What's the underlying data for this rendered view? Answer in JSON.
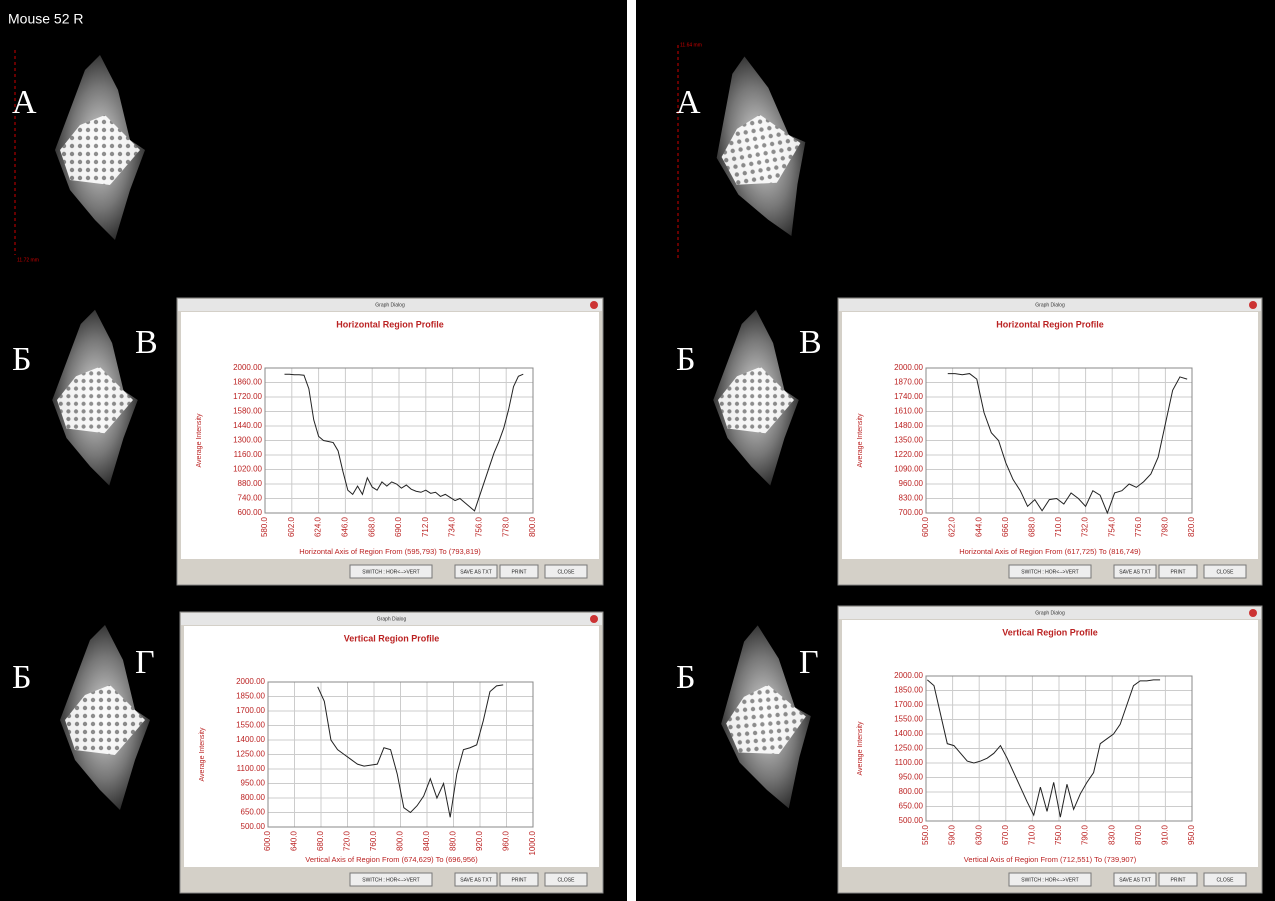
{
  "header": {
    "title": "Mouse 52 R"
  },
  "panels": [
    {
      "scale_label": "11.72 mm",
      "labels": [
        "А",
        "Б",
        "В",
        "Б",
        "Г"
      ]
    },
    {
      "scale_label": "11.64 mm",
      "labels": [
        "А",
        "Б",
        "В",
        "Б",
        "Г"
      ]
    }
  ],
  "dialog": {
    "title": "Graph Dialog",
    "buttons": [
      "SWITCH : HOR<-->VERT",
      "SAVE AS TXT",
      "PRINT",
      "CLOSE"
    ]
  },
  "chart_data": [
    {
      "type": "line",
      "title": "Horizontal Region Profile",
      "y_label": "Average Intensity",
      "x_label": "Horizontal Axis of Region From (595,793) To (793,819)",
      "color": "#222222",
      "grid": true,
      "x": [
        596,
        600,
        604,
        608,
        612,
        616,
        620,
        624,
        628,
        632,
        636,
        640,
        644,
        648,
        652,
        656,
        660,
        664,
        668,
        672,
        676,
        680,
        684,
        688,
        692,
        696,
        700,
        704,
        708,
        712,
        716,
        720,
        724,
        728,
        732,
        736,
        740,
        744,
        748,
        752,
        756,
        760,
        764,
        768,
        772,
        776,
        780,
        784,
        788,
        792
      ],
      "values": [
        1940,
        1940,
        1935,
        1935,
        1930,
        1800,
        1500,
        1340,
        1300,
        1290,
        1280,
        1200,
        1000,
        820,
        780,
        860,
        780,
        940,
        850,
        820,
        900,
        860,
        900,
        880,
        840,
        870,
        830,
        810,
        800,
        820,
        790,
        800,
        760,
        780,
        750,
        720,
        740,
        700,
        660,
        620,
        760,
        900,
        1040,
        1180,
        1290,
        1420,
        1600,
        1820,
        1920,
        1940
      ],
      "xlim": [
        580,
        800
      ],
      "ylim": [
        600,
        2000
      ],
      "xticks": [
        {
          "value": 580,
          "label": "580.0"
        },
        {
          "value": 602,
          "label": "602.0"
        },
        {
          "value": 624,
          "label": "624.0"
        },
        {
          "value": 646,
          "label": "646.0"
        },
        {
          "value": 668,
          "label": "668.0"
        },
        {
          "value": 690,
          "label": "690.0"
        },
        {
          "value": 712,
          "label": "712.0"
        },
        {
          "value": 734,
          "label": "734.0"
        },
        {
          "value": 756,
          "label": "756.0"
        },
        {
          "value": 778,
          "label": "778.0"
        },
        {
          "value": 800,
          "label": "800.0"
        }
      ],
      "yticks": [
        {
          "value": 600,
          "label": "600.00"
        },
        {
          "value": 740,
          "label": "740.00"
        },
        {
          "value": 880,
          "label": "880.00"
        },
        {
          "value": 1020,
          "label": "1020.00"
        },
        {
          "value": 1160,
          "label": "1160.00"
        },
        {
          "value": 1300,
          "label": "1300.00"
        },
        {
          "value": 1440,
          "label": "1440.00"
        },
        {
          "value": 1580,
          "label": "1580.00"
        },
        {
          "value": 1720,
          "label": "1720.00"
        },
        {
          "value": 1860,
          "label": "1860.00"
        },
        {
          "value": 2000,
          "label": "2000.00"
        }
      ]
    },
    {
      "type": "line",
      "title": "Vertical Region Profile",
      "y_label": "Average Intensity",
      "x_label": "Vertical Axis of Region From (674,629) To (696,956)",
      "color": "#222222",
      "grid": true,
      "x": [
        675,
        685,
        695,
        705,
        715,
        725,
        735,
        745,
        755,
        765,
        775,
        785,
        795,
        805,
        815,
        825,
        835,
        845,
        855,
        865,
        875,
        885,
        895,
        905,
        915,
        925,
        935,
        945,
        955
      ],
      "values": [
        1950,
        1800,
        1400,
        1300,
        1250,
        1200,
        1150,
        1130,
        1140,
        1150,
        1320,
        1300,
        1050,
        700,
        650,
        720,
        820,
        1000,
        800,
        950,
        600,
        1050,
        1300,
        1320,
        1350,
        1600,
        1900,
        1960,
        1970
      ],
      "xlim": [
        600,
        1000
      ],
      "ylim": [
        500,
        2000
      ],
      "xticks": [
        {
          "value": 600,
          "label": "600.0"
        },
        {
          "value": 640,
          "label": "640.0"
        },
        {
          "value": 680,
          "label": "680.0"
        },
        {
          "value": 720,
          "label": "720.0"
        },
        {
          "value": 760,
          "label": "760.0"
        },
        {
          "value": 800,
          "label": "800.0"
        },
        {
          "value": 840,
          "label": "840.0"
        },
        {
          "value": 880,
          "label": "880.0"
        },
        {
          "value": 920,
          "label": "920.0"
        },
        {
          "value": 960,
          "label": "960.0"
        },
        {
          "value": 1000,
          "label": "1000.0"
        }
      ],
      "yticks": [
        {
          "value": 500,
          "label": "500.00"
        },
        {
          "value": 650,
          "label": "650.00"
        },
        {
          "value": 800,
          "label": "800.00"
        },
        {
          "value": 950,
          "label": "950.00"
        },
        {
          "value": 1100,
          "label": "1100.00"
        },
        {
          "value": 1250,
          "label": "1250.00"
        },
        {
          "value": 1400,
          "label": "1400.00"
        },
        {
          "value": 1550,
          "label": "1550.00"
        },
        {
          "value": 1700,
          "label": "1700.00"
        },
        {
          "value": 1850,
          "label": "1850.00"
        },
        {
          "value": 2000,
          "label": "2000.00"
        }
      ]
    },
    {
      "type": "line",
      "title": "Horizontal Region Profile",
      "y_label": "Average Intensity",
      "x_label": "Horizontal Axis of Region From (617,725) To (816,749)",
      "color": "#222222",
      "grid": true,
      "x": [
        618,
        624,
        630,
        636,
        642,
        648,
        654,
        660,
        666,
        672,
        678,
        684,
        690,
        696,
        702,
        708,
        714,
        720,
        726,
        732,
        738,
        744,
        750,
        756,
        762,
        768,
        774,
        780,
        786,
        792,
        798,
        804,
        810,
        816
      ],
      "values": [
        1950,
        1950,
        1940,
        1950,
        1900,
        1600,
        1420,
        1350,
        1150,
        1000,
        900,
        760,
        820,
        720,
        820,
        830,
        780,
        880,
        830,
        760,
        900,
        860,
        700,
        880,
        900,
        960,
        930,
        980,
        1050,
        1200,
        1500,
        1800,
        1920,
        1900
      ],
      "xlim": [
        600,
        820
      ],
      "ylim": [
        700,
        2000
      ],
      "xticks": [
        {
          "value": 600,
          "label": "600.0"
        },
        {
          "value": 622,
          "label": "622.0"
        },
        {
          "value": 644,
          "label": "644.0"
        },
        {
          "value": 666,
          "label": "666.0"
        },
        {
          "value": 688,
          "label": "688.0"
        },
        {
          "value": 710,
          "label": "710.0"
        },
        {
          "value": 732,
          "label": "732.0"
        },
        {
          "value": 754,
          "label": "754.0"
        },
        {
          "value": 776,
          "label": "776.0"
        },
        {
          "value": 798,
          "label": "798.0"
        },
        {
          "value": 820,
          "label": "820.0"
        }
      ],
      "yticks": [
        {
          "value": 700,
          "label": "700.00"
        },
        {
          "value": 830,
          "label": "830.00"
        },
        {
          "value": 960,
          "label": "960.00"
        },
        {
          "value": 1090,
          "label": "1090.00"
        },
        {
          "value": 1220,
          "label": "1220.00"
        },
        {
          "value": 1350,
          "label": "1350.00"
        },
        {
          "value": 1480,
          "label": "1480.00"
        },
        {
          "value": 1610,
          "label": "1610.00"
        },
        {
          "value": 1740,
          "label": "1740.00"
        },
        {
          "value": 1870,
          "label": "1870.00"
        },
        {
          "value": 2000,
          "label": "2000.00"
        }
      ]
    },
    {
      "type": "line",
      "title": "Vertical Region Profile",
      "y_label": "Average Intensity",
      "x_label": "Vertical Axis of Region From (712,551) To (739,907)",
      "color": "#222222",
      "grid": true,
      "x": [
        552,
        562,
        572,
        582,
        592,
        602,
        612,
        622,
        632,
        642,
        652,
        662,
        672,
        682,
        692,
        702,
        712,
        722,
        732,
        742,
        752,
        762,
        772,
        782,
        792,
        802,
        812,
        822,
        832,
        842,
        852,
        862,
        872,
        882,
        892,
        902
      ],
      "values": [
        1960,
        1900,
        1600,
        1300,
        1280,
        1200,
        1120,
        1100,
        1120,
        1150,
        1200,
        1280,
        1150,
        1000,
        850,
        700,
        560,
        850,
        600,
        900,
        540,
        880,
        620,
        780,
        900,
        1000,
        1300,
        1350,
        1400,
        1500,
        1700,
        1900,
        1950,
        1950,
        1960,
        1960
      ],
      "xlim": [
        550,
        950
      ],
      "ylim": [
        500,
        2000
      ],
      "xticks": [
        {
          "value": 550,
          "label": "550.0"
        },
        {
          "value": 590,
          "label": "590.0"
        },
        {
          "value": 630,
          "label": "630.0"
        },
        {
          "value": 670,
          "label": "670.0"
        },
        {
          "value": 710,
          "label": "710.0"
        },
        {
          "value": 750,
          "label": "750.0"
        },
        {
          "value": 790,
          "label": "790.0"
        },
        {
          "value": 830,
          "label": "830.0"
        },
        {
          "value": 870,
          "label": "870.0"
        },
        {
          "value": 910,
          "label": "910.0"
        },
        {
          "value": 950,
          "label": "950.0"
        }
      ],
      "yticks": [
        {
          "value": 500,
          "label": "500.00"
        },
        {
          "value": 650,
          "label": "650.00"
        },
        {
          "value": 800,
          "label": "800.00"
        },
        {
          "value": 950,
          "label": "950.00"
        },
        {
          "value": 1100,
          "label": "1100.00"
        },
        {
          "value": 1250,
          "label": "1250.00"
        },
        {
          "value": 1400,
          "label": "1400.00"
        },
        {
          "value": 1550,
          "label": "1550.00"
        },
        {
          "value": 1700,
          "label": "1700.00"
        },
        {
          "value": 1850,
          "label": "1850.00"
        },
        {
          "value": 2000,
          "label": "2000.00"
        }
      ]
    }
  ]
}
